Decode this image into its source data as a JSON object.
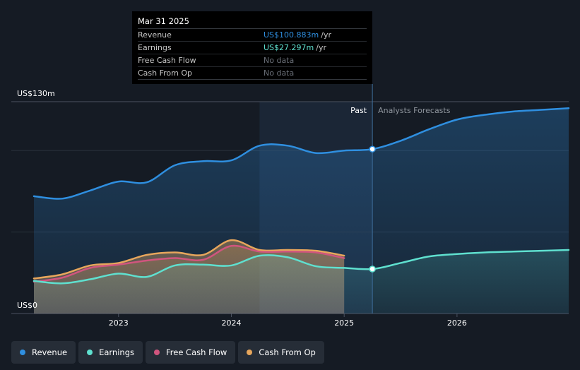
{
  "tooltip": {
    "date": "Mar 31 2025",
    "rows": [
      {
        "label": "Revenue",
        "value": "US$100.883m",
        "unit": "/yr",
        "color": "#2f8fe0"
      },
      {
        "label": "Earnings",
        "value": "US$27.297m",
        "unit": "/yr",
        "color": "#5fe0cf"
      },
      {
        "label": "Free Cash Flow",
        "value": "No data",
        "unit": "",
        "color": "#6a6f78"
      },
      {
        "label": "Cash From Op",
        "value": "No data",
        "unit": "",
        "color": "#6a6f78"
      }
    ]
  },
  "legend": [
    {
      "label": "Revenue",
      "color": "#2f8fe0"
    },
    {
      "label": "Earnings",
      "color": "#5fe0cf"
    },
    {
      "label": "Free Cash Flow",
      "color": "#d0557e"
    },
    {
      "label": "Cash From Op",
      "color": "#e7a65c"
    }
  ],
  "chart_data": {
    "type": "line",
    "y_max_label": "US$130m",
    "y_min_label": "US$0",
    "ylim": [
      0,
      130
    ],
    "xlim": [
      2022.25,
      2026.99
    ],
    "x_ticks": [
      2023,
      2024,
      2025,
      2026
    ],
    "x_tick_labels": [
      "2023",
      "2024",
      "2025",
      "2026"
    ],
    "past_label": "Past",
    "forecast_label": "Analysts Forecasts",
    "divider_x": 2025.25,
    "highlight_range": [
      2024.25,
      2025.25
    ],
    "series": [
      {
        "name": "Revenue",
        "color": "#2f8fe0",
        "x": [
          2022.25,
          2022.5,
          2022.75,
          2023.0,
          2023.25,
          2023.5,
          2023.75,
          2024.0,
          2024.25,
          2024.5,
          2024.75,
          2025.0,
          2025.25,
          2025.5,
          2025.75,
          2026.0,
          2026.25,
          2026.5,
          2026.75,
          2026.99
        ],
        "y": [
          72,
          70.5,
          75.5,
          81,
          80.5,
          91,
          93.5,
          94,
          103,
          103,
          98.5,
          100,
          100.883,
          106,
          113,
          119,
          122,
          124,
          125,
          126
        ]
      },
      {
        "name": "Earnings",
        "color": "#5fe0cf",
        "x": [
          2022.25,
          2022.5,
          2022.75,
          2023.0,
          2023.25,
          2023.5,
          2023.75,
          2024.0,
          2024.25,
          2024.5,
          2024.75,
          2025.0,
          2025.25,
          2025.5,
          2025.75,
          2026.0,
          2026.25,
          2026.5,
          2026.75,
          2026.99
        ],
        "y": [
          20,
          18.5,
          21,
          24.5,
          22.5,
          29.5,
          30,
          29.5,
          35.5,
          34.5,
          29,
          28,
          27.297,
          31,
          35,
          36.5,
          37.5,
          38,
          38.5,
          39
        ]
      },
      {
        "name": "Free Cash Flow",
        "color": "#d0557e",
        "x": [
          2022.25,
          2022.5,
          2022.75,
          2023.0,
          2023.25,
          2023.5,
          2023.75,
          2024.0,
          2024.25,
          2024.5,
          2024.75,
          2025.0
        ],
        "y": [
          19.5,
          22,
          28,
          30,
          32.5,
          34,
          33,
          41.5,
          38,
          38,
          37.5,
          34
        ]
      },
      {
        "name": "Cash From Op",
        "color": "#e7a65c",
        "x": [
          2022.25,
          2022.5,
          2022.75,
          2023.0,
          2023.25,
          2023.5,
          2023.75,
          2024.0,
          2024.25,
          2024.5,
          2024.75,
          2025.0
        ],
        "y": [
          21.5,
          24,
          29.5,
          31,
          36,
          37.5,
          36,
          45,
          39,
          39,
          38.5,
          35.5
        ]
      }
    ],
    "markers": [
      {
        "series": "Revenue",
        "x": 2025.25,
        "y": 100.883
      },
      {
        "series": "Earnings",
        "x": 2025.25,
        "y": 27.297
      }
    ]
  }
}
